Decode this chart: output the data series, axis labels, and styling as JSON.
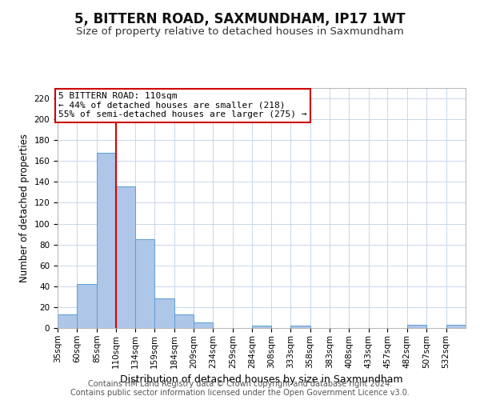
{
  "title": "5, BITTERN ROAD, SAXMUNDHAM, IP17 1WT",
  "subtitle": "Size of property relative to detached houses in Saxmundham",
  "xlabel": "Distribution of detached houses by size in Saxmundham",
  "ylabel": "Number of detached properties",
  "categories": [
    "35sqm",
    "60sqm",
    "85sqm",
    "110sqm",
    "134sqm",
    "159sqm",
    "184sqm",
    "209sqm",
    "234sqm",
    "259sqm",
    "284sqm",
    "308sqm",
    "333sqm",
    "358sqm",
    "383sqm",
    "408sqm",
    "433sqm",
    "457sqm",
    "482sqm",
    "507sqm",
    "532sqm"
  ],
  "bin_edges": [
    35,
    60,
    85,
    110,
    134,
    159,
    184,
    209,
    234,
    259,
    284,
    308,
    333,
    358,
    383,
    408,
    433,
    457,
    482,
    507,
    532,
    557
  ],
  "values": [
    13,
    42,
    168,
    136,
    85,
    28,
    13,
    5,
    0,
    0,
    2,
    0,
    2,
    0,
    0,
    0,
    0,
    0,
    3,
    0,
    3
  ],
  "bar_color": "#aec6e8",
  "bar_edge_color": "#5a9fd4",
  "vline_x": 110,
  "vline_color": "#dd0000",
  "ylim": [
    0,
    230
  ],
  "yticks": [
    0,
    20,
    40,
    60,
    80,
    100,
    120,
    140,
    160,
    180,
    200,
    220
  ],
  "annotation_title": "5 BITTERN ROAD: 110sqm",
  "annotation_line1": "← 44% of detached houses are smaller (218)",
  "annotation_line2": "55% of semi-detached houses are larger (275) →",
  "annotation_box_color": "#ffffff",
  "annotation_box_edge": "#cc0000",
  "footer1": "Contains HM Land Registry data © Crown copyright and database right 2024.",
  "footer2": "Contains public sector information licensed under the Open Government Licence v3.0.",
  "grid_color": "#c8d8ea",
  "background_color": "#ffffff",
  "title_fontsize": 12,
  "subtitle_fontsize": 9.5,
  "ylabel_fontsize": 8.5,
  "xlabel_fontsize": 9,
  "tick_fontsize": 7.5,
  "ann_fontsize": 8,
  "footer_fontsize": 7
}
